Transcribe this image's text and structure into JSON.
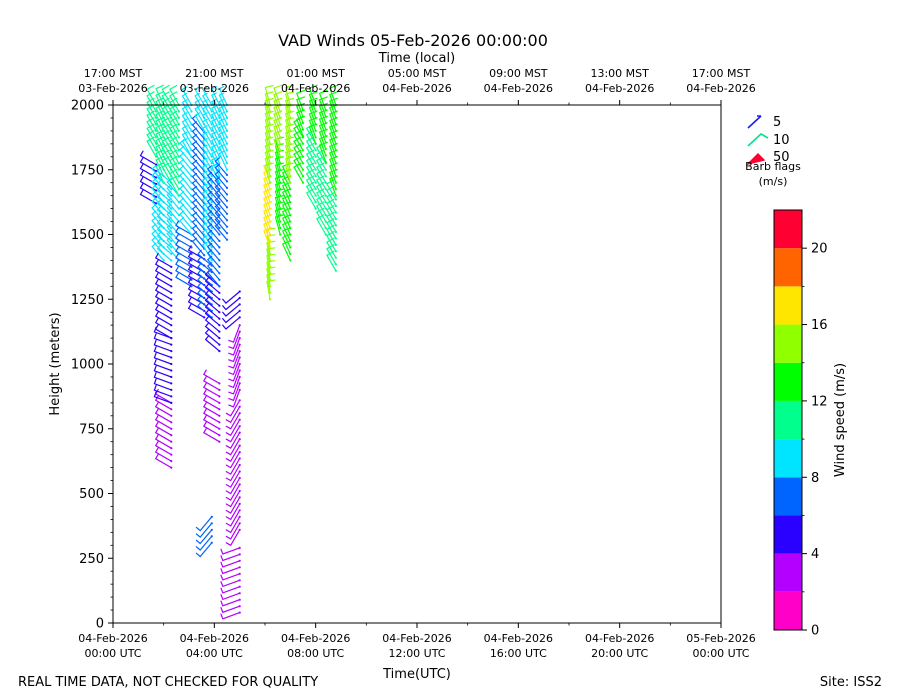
{
  "chart_data": {
    "type": "barb",
    "title": "VAD Winds 05-Feb-2026 00:00:00",
    "top_axis_label": "Time (local)",
    "xlabel": "Time(UTC)",
    "ylabel": "Height (meters)",
    "colorbar_label": "Wind speed (m/s)",
    "footer_left": "REAL TIME DATA, NOT CHECKED FOR QUALITY",
    "footer_right": "Site: ISS2",
    "x_range_hours": [
      0,
      24
    ],
    "ylim": [
      0,
      2000
    ],
    "y_ticks": [
      0,
      250,
      500,
      750,
      1000,
      1250,
      1500,
      1750,
      2000
    ],
    "y_tick_labels": [
      "0",
      "250",
      "500",
      "750",
      "1000",
      "1250",
      "1500",
      "1750",
      "2000"
    ],
    "x_ticks": [
      {
        "hour": 0,
        "line1": "04-Feb-2026",
        "line2": "00:00 UTC"
      },
      {
        "hour": 4,
        "line1": "04-Feb-2026",
        "line2": "04:00 UTC"
      },
      {
        "hour": 8,
        "line1": "04-Feb-2026",
        "line2": "08:00 UTC"
      },
      {
        "hour": 12,
        "line1": "04-Feb-2026",
        "line2": "12:00 UTC"
      },
      {
        "hour": 16,
        "line1": "04-Feb-2026",
        "line2": "16:00 UTC"
      },
      {
        "hour": 20,
        "line1": "04-Feb-2026",
        "line2": "20:00 UTC"
      },
      {
        "hour": 24,
        "line1": "05-Feb-2026",
        "line2": "00:00 UTC"
      }
    ],
    "top_ticks": [
      {
        "hour": 0,
        "line1": "17:00 MST",
        "line2": "03-Feb-2026"
      },
      {
        "hour": 4,
        "line1": "21:00 MST",
        "line2": "03-Feb-2026"
      },
      {
        "hour": 8,
        "line1": "01:00 MST",
        "line2": "04-Feb-2026"
      },
      {
        "hour": 12,
        "line1": "05:00 MST",
        "line2": "04-Feb-2026"
      },
      {
        "hour": 16,
        "line1": "09:00 MST",
        "line2": "04-Feb-2026"
      },
      {
        "hour": 20,
        "line1": "13:00 MST",
        "line2": "04-Feb-2026"
      },
      {
        "hour": 24,
        "line1": "17:00 MST",
        "line2": "04-Feb-2026"
      }
    ],
    "legend": {
      "entries": [
        {
          "label": "5",
          "color": "#1a1aff"
        },
        {
          "label": "10",
          "color": "#00e58a"
        },
        {
          "label": "50",
          "color": "#ff0033"
        }
      ],
      "title_line1": "Barb flags",
      "title_line2": "(m/s)"
    },
    "colorbar": {
      "range": [
        0,
        22
      ],
      "tick_values": [
        0,
        4,
        8,
        12,
        16,
        20
      ],
      "tick_labels": [
        "0",
        "4",
        "8",
        "12",
        "16",
        "20"
      ],
      "bins": [
        {
          "lo": 0,
          "hi": 2,
          "color": "#ff00c8"
        },
        {
          "lo": 2,
          "hi": 4,
          "color": "#b300ff"
        },
        {
          "lo": 4,
          "hi": 6,
          "color": "#2a00ff"
        },
        {
          "lo": 6,
          "hi": 8,
          "color": "#0064ff"
        },
        {
          "lo": 8,
          "hi": 10,
          "color": "#00e5ff"
        },
        {
          "lo": 10,
          "hi": 12,
          "color": "#00ff8c"
        },
        {
          "lo": 12,
          "hi": 14,
          "color": "#00ff00"
        },
        {
          "lo": 14,
          "hi": 16,
          "color": "#90ff00"
        },
        {
          "lo": 16,
          "hi": 18,
          "color": "#ffe600"
        },
        {
          "lo": 18,
          "hi": 20,
          "color": "#ff6400"
        },
        {
          "lo": 20,
          "hi": 22,
          "color": "#ff0033"
        }
      ]
    },
    "profiles": [
      {
        "hour": 1.7,
        "segments": [
          {
            "h0": 1620,
            "h1": 1780,
            "speed": 5,
            "dir": 300
          },
          {
            "h0": 1800,
            "h1": 2000,
            "speed": 10,
            "dir": 330
          }
        ]
      },
      {
        "hour": 2.0,
        "segments": [
          {
            "h0": 1400,
            "h1": 1700,
            "speed": 9,
            "dir": 320
          },
          {
            "h0": 1700,
            "h1": 2000,
            "speed": 10,
            "dir": 335
          }
        ]
      },
      {
        "hour": 2.3,
        "segments": [
          {
            "h0": 600,
            "h1": 850,
            "speed": 3,
            "dir": 300
          },
          {
            "h0": 850,
            "h1": 1100,
            "speed": 5,
            "dir": 290
          },
          {
            "h0": 1100,
            "h1": 1380,
            "speed": 5,
            "dir": 300
          },
          {
            "h0": 1400,
            "h1": 1700,
            "speed": 9,
            "dir": 310
          },
          {
            "h0": 1700,
            "h1": 2000,
            "speed": 10,
            "dir": 330
          }
        ]
      },
      {
        "hour": 2.6,
        "segments": [
          {
            "h0": 1400,
            "h1": 1650,
            "speed": 8,
            "dir": 320
          },
          {
            "h0": 1650,
            "h1": 2000,
            "speed": 10,
            "dir": 330
          }
        ]
      },
      {
        "hour": 3.1,
        "segments": [
          {
            "h0": 1300,
            "h1": 1500,
            "speed": 6,
            "dir": 300
          },
          {
            "h0": 1500,
            "h1": 1800,
            "speed": 8,
            "dir": 320
          },
          {
            "h0": 1800,
            "h1": 2000,
            "speed": 9,
            "dir": 330
          }
        ]
      },
      {
        "hour": 3.6,
        "segments": [
          {
            "h0": 1180,
            "h1": 1420,
            "speed": 5,
            "dir": 300
          },
          {
            "h0": 1420,
            "h1": 1900,
            "speed": 7,
            "dir": 320
          },
          {
            "h0": 1900,
            "h1": 2000,
            "speed": 9,
            "dir": 330
          }
        ]
      },
      {
        "hour": 3.9,
        "segments": [
          {
            "h0": 310,
            "h1": 430,
            "speed": 7,
            "dir": 220
          },
          {
            "h0": 1180,
            "h1": 1400,
            "speed": 6,
            "dir": 310
          },
          {
            "h0": 1400,
            "h1": 2000,
            "speed": 8,
            "dir": 330
          }
        ]
      },
      {
        "hour": 4.2,
        "segments": [
          {
            "h0": 700,
            "h1": 940,
            "speed": 3,
            "dir": 300
          },
          {
            "h0": 1050,
            "h1": 1300,
            "speed": 5,
            "dir": 310
          },
          {
            "h0": 1300,
            "h1": 1700,
            "speed": 7,
            "dir": 320
          },
          {
            "h0": 1700,
            "h1": 2000,
            "speed": 9,
            "dir": 335
          }
        ]
      },
      {
        "hour": 4.5,
        "segments": [
          {
            "h0": 1480,
            "h1": 1750,
            "speed": 7,
            "dir": 320
          },
          {
            "h0": 1750,
            "h1": 2000,
            "speed": 9,
            "dir": 335
          }
        ]
      },
      {
        "hour": 5.0,
        "segments": [
          {
            "h0": 40,
            "h1": 300,
            "speed": 3,
            "dir": 250
          },
          {
            "h0": 360,
            "h1": 880,
            "speed": 3,
            "dir": 210
          },
          {
            "h0": 900,
            "h1": 1150,
            "speed": 3,
            "dir": 200
          },
          {
            "h0": 1180,
            "h1": 1280,
            "speed": 5,
            "dir": 230
          }
        ]
      },
      {
        "hour": 6.2,
        "segments": [
          {
            "h0": 1250,
            "h1": 1450,
            "speed": 14,
            "dir": 350
          },
          {
            "h0": 1450,
            "h1": 1700,
            "speed": 17,
            "dir": 340
          },
          {
            "h0": 1700,
            "h1": 2000,
            "speed": 14,
            "dir": 345
          }
        ]
      },
      {
        "hour": 6.6,
        "segments": [
          {
            "h0": 1500,
            "h1": 1800,
            "speed": 13,
            "dir": 345
          },
          {
            "h0": 1800,
            "h1": 2000,
            "speed": 14,
            "dir": 340
          }
        ]
      },
      {
        "hour": 7.0,
        "segments": [
          {
            "h0": 1400,
            "h1": 1700,
            "speed": 13,
            "dir": 335
          },
          {
            "h0": 1700,
            "h1": 2000,
            "speed": 14,
            "dir": 345
          }
        ]
      },
      {
        "hour": 7.5,
        "segments": [
          {
            "h0": 1700,
            "h1": 1880,
            "speed": 12,
            "dir": 330
          },
          {
            "h0": 1880,
            "h1": 2000,
            "speed": 13,
            "dir": 340
          }
        ]
      },
      {
        "hour": 8.0,
        "segments": [
          {
            "h0": 1600,
            "h1": 1850,
            "speed": 11,
            "dir": 330
          },
          {
            "h0": 1850,
            "h1": 2000,
            "speed": 13,
            "dir": 340
          }
        ]
      },
      {
        "hour": 8.4,
        "segments": [
          {
            "h0": 1500,
            "h1": 1780,
            "speed": 11,
            "dir": 330
          },
          {
            "h0": 1780,
            "h1": 2000,
            "speed": 13,
            "dir": 340
          }
        ]
      },
      {
        "hour": 8.8,
        "segments": [
          {
            "h0": 1360,
            "h1": 1650,
            "speed": 10,
            "dir": 330
          },
          {
            "h0": 1650,
            "h1": 2000,
            "speed": 12,
            "dir": 340
          }
        ]
      }
    ]
  }
}
